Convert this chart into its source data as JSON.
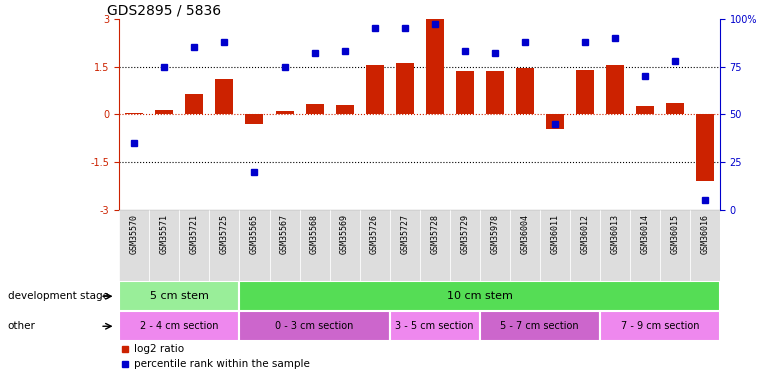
{
  "title": "GDS2895 / 5836",
  "samples": [
    "GSM35570",
    "GSM35571",
    "GSM35721",
    "GSM35725",
    "GSM35565",
    "GSM35567",
    "GSM35568",
    "GSM35569",
    "GSM35726",
    "GSM35727",
    "GSM35728",
    "GSM35729",
    "GSM35978",
    "GSM36004",
    "GSM36011",
    "GSM36012",
    "GSM36013",
    "GSM36014",
    "GSM36015",
    "GSM36016"
  ],
  "log2_ratio": [
    0.05,
    0.15,
    0.65,
    1.1,
    -0.3,
    0.12,
    0.32,
    0.3,
    1.55,
    1.6,
    3.0,
    1.35,
    1.35,
    1.45,
    -0.45,
    1.4,
    1.55,
    0.25,
    0.35,
    -2.1
  ],
  "percentile": [
    35,
    75,
    85,
    88,
    20,
    75,
    82,
    83,
    95,
    95,
    97,
    83,
    82,
    88,
    45,
    88,
    90,
    70,
    78,
    5
  ],
  "bar_color": "#cc2200",
  "dot_color": "#0000cc",
  "axis_color": "#cc2200",
  "right_axis_color": "#0000cc",
  "ylim": [
    -3,
    3
  ],
  "y2lim": [
    0,
    100
  ],
  "yticks": [
    -3,
    -1.5,
    0,
    1.5,
    3
  ],
  "y2ticks": [
    0,
    25,
    50,
    75,
    100
  ],
  "dev_stage_groups": [
    {
      "label": "5 cm stem",
      "start": 0,
      "end": 3,
      "color": "#99ee99"
    },
    {
      "label": "10 cm stem",
      "start": 4,
      "end": 19,
      "color": "#55dd55"
    }
  ],
  "other_groups": [
    {
      "label": "2 - 4 cm section",
      "start": 0,
      "end": 3,
      "color": "#ee88ee"
    },
    {
      "label": "0 - 3 cm section",
      "start": 4,
      "end": 8,
      "color": "#cc66cc"
    },
    {
      "label": "3 - 5 cm section",
      "start": 9,
      "end": 11,
      "color": "#ee88ee"
    },
    {
      "label": "5 - 7 cm section",
      "start": 12,
      "end": 15,
      "color": "#cc66cc"
    },
    {
      "label": "7 - 9 cm section",
      "start": 16,
      "end": 19,
      "color": "#ee88ee"
    }
  ],
  "dev_row_label": "development stage",
  "other_row_label": "other",
  "legend_items": [
    {
      "label": "log2 ratio",
      "color": "#cc2200"
    },
    {
      "label": "percentile rank within the sample",
      "color": "#0000cc"
    }
  ],
  "tick_fontsize": 7,
  "title_fontsize": 10
}
